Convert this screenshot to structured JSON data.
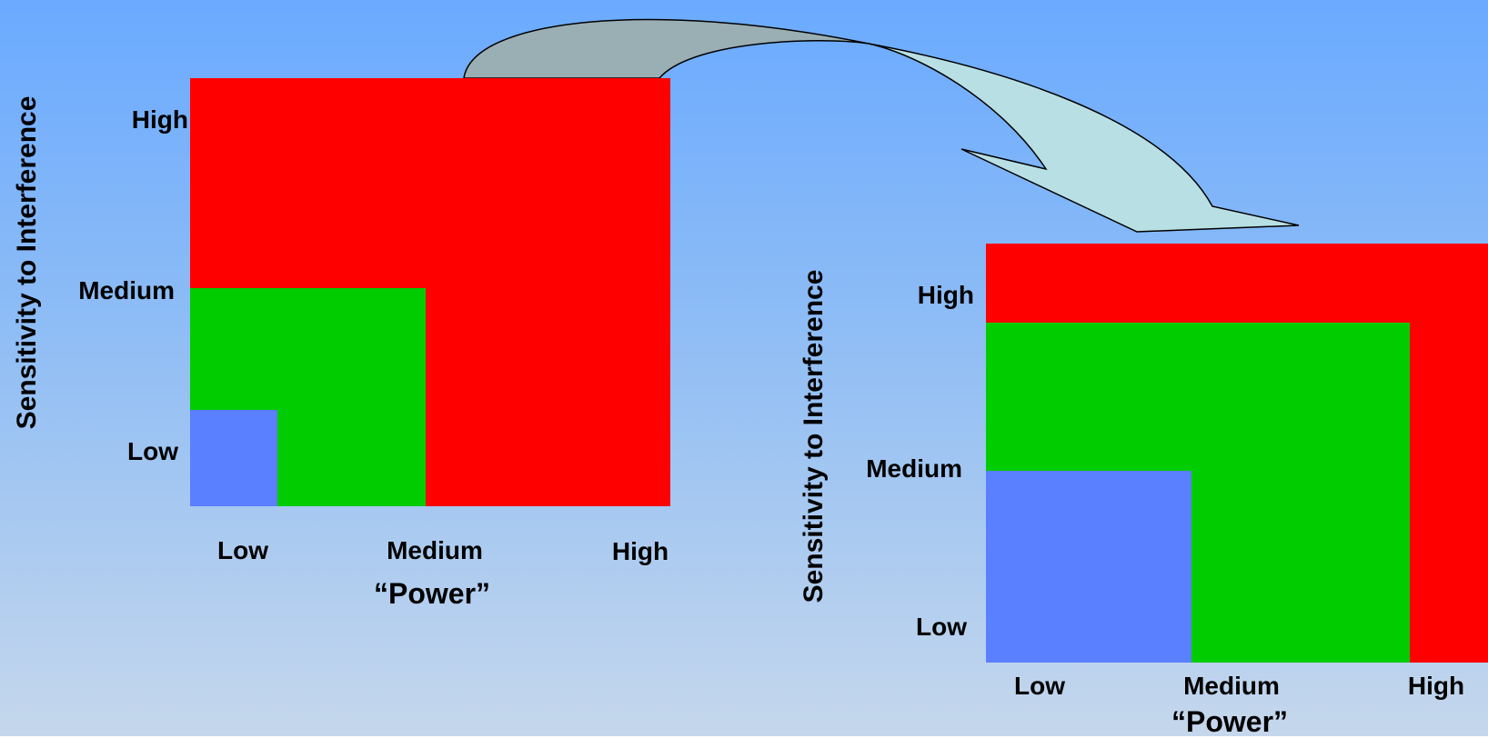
{
  "diagrams": [
    {
      "id": "before",
      "y_axis_title": "Sensitivity to Interference",
      "x_axis_title": "“Power”",
      "x_ticks": [
        "Low",
        "Medium",
        "High"
      ],
      "y_ticks": [
        "High",
        "Medium",
        "Low"
      ],
      "zones": [
        {
          "name": "high-zone",
          "color": "#ff0000"
        },
        {
          "name": "medium-zone",
          "color": "#00cc00"
        },
        {
          "name": "low-zone",
          "color": "#5a7fff"
        }
      ]
    },
    {
      "id": "after",
      "y_axis_title": "Sensitivity to Interference",
      "x_axis_title": "“Power”",
      "x_ticks": [
        "Low",
        "Medium",
        "High"
      ],
      "y_ticks": [
        "High",
        "Medium",
        "Low"
      ],
      "zones": [
        {
          "name": "high-zone",
          "color": "#ff0000"
        },
        {
          "name": "medium-zone",
          "color": "#00cc00"
        },
        {
          "name": "low-zone",
          "color": "#5a7fff"
        }
      ]
    }
  ],
  "arrow": {
    "fill": "#b8e0e4",
    "shade": "#9aafb4",
    "stroke": "#000000"
  }
}
